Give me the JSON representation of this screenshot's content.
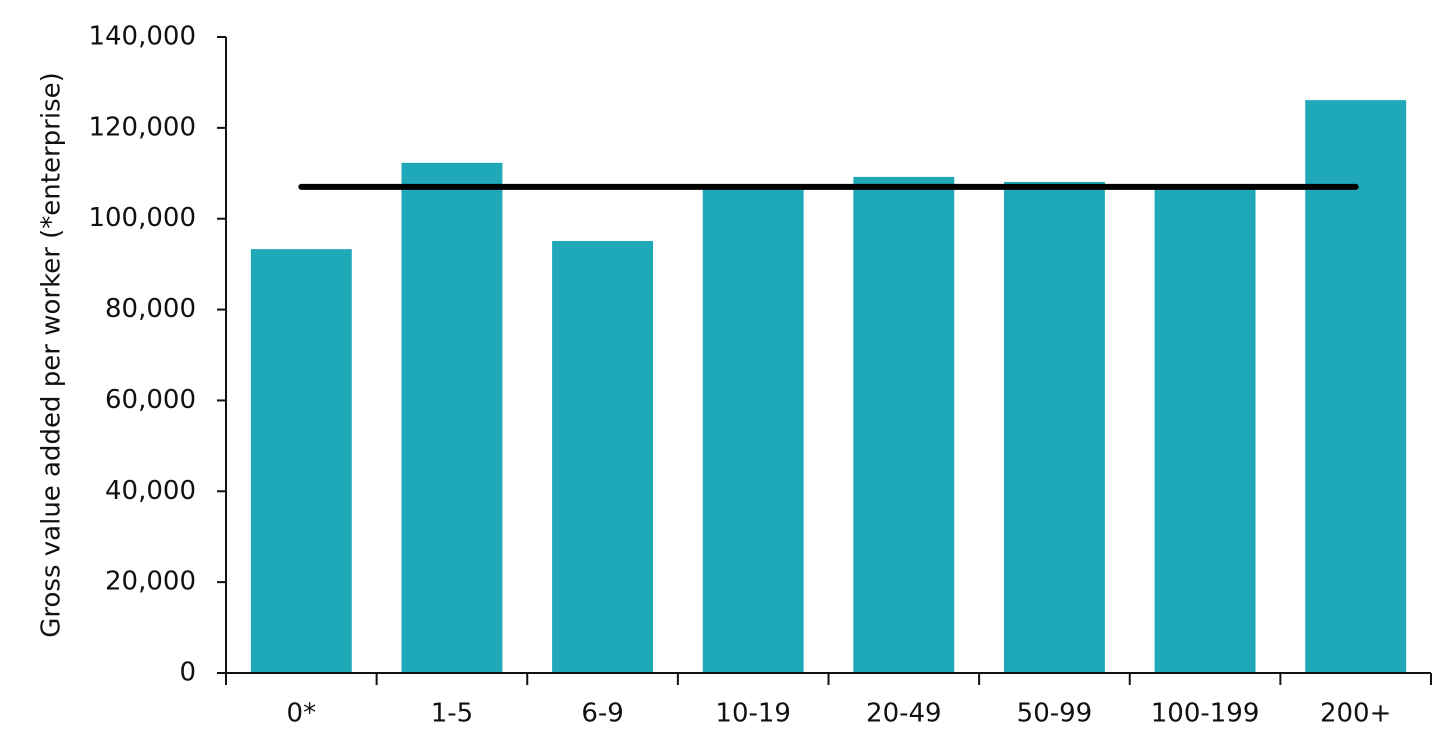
{
  "chart_data": {
    "type": "bar",
    "y_label": "Gross value added per worker (*enterprise)",
    "categories": [
      "0*",
      "1-5",
      "6-9",
      "10-19",
      "20-49",
      "50-99",
      "100-199",
      "200+"
    ],
    "values": [
      93300,
      112300,
      95100,
      106500,
      109200,
      108100,
      106500,
      126100
    ],
    "color": "#1fa9b8",
    "line": {
      "color": "#000000",
      "values": [
        107000,
        107000,
        107000,
        107000,
        107000,
        107000,
        107000,
        107000
      ]
    },
    "ylim": [
      0,
      140000
    ],
    "yticks": [
      0,
      {
        "value": 20000,
        "label": "20,000"
      },
      {
        "value": 40000,
        "label": "40,000"
      },
      {
        "value": 60000,
        "label": "60,000"
      },
      {
        "value": 80000,
        "label": "80,000"
      },
      {
        "value": 100000,
        "label": "100,000"
      },
      {
        "value": 120000,
        "label": "120,000"
      },
      {
        "value": 140000,
        "label": "140,000"
      }
    ],
    "grid": false
  }
}
